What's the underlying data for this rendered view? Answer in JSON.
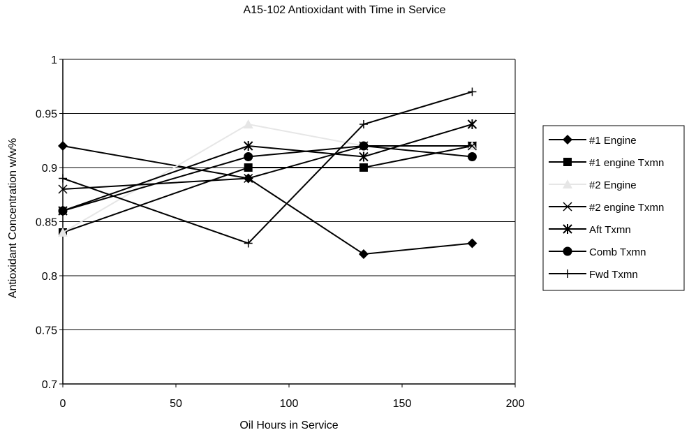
{
  "chart_data": {
    "type": "line",
    "title": "A15-102 Antioxidant with Time in Service",
    "xlabel": "Oil Hours in Service",
    "ylabel": "Antioxidant Concentration w/w%",
    "xlim": [
      0,
      200
    ],
    "ylim": [
      0.7,
      1
    ],
    "xticks": [
      0,
      50,
      100,
      150,
      200
    ],
    "yticks": [
      0.7,
      0.75,
      0.8,
      0.85,
      0.9,
      0.95,
      1
    ],
    "xtick_labels": [
      "0",
      "50",
      "100",
      "150",
      "200"
    ],
    "ytick_labels": [
      "0.7",
      "0.75",
      "0.8",
      "0.85",
      "0.9",
      "0.95",
      "1"
    ],
    "grid": "horizontal",
    "legend_position": "right",
    "series": [
      {
        "name": "#1 Engine",
        "marker": "diamond",
        "color": "#000000",
        "x": [
          0,
          82,
          133,
          181
        ],
        "y": [
          0.92,
          0.89,
          0.82,
          0.83
        ]
      },
      {
        "name": "#1 engine Txmn",
        "marker": "square",
        "color": "#000000",
        "x": [
          0,
          82,
          133,
          181
        ],
        "y": [
          0.84,
          0.9,
          0.9,
          0.92
        ]
      },
      {
        "name": "#2 Engine",
        "marker": "triangle",
        "color": "#e6e6e6",
        "x": [
          0,
          82,
          133,
          181
        ],
        "y": [
          0.84,
          0.94,
          0.92,
          0.92
        ]
      },
      {
        "name": "#2 engine Txmn",
        "marker": "x",
        "color": "#000000",
        "x": [
          0,
          82,
          133,
          181
        ],
        "y": [
          0.88,
          0.89,
          0.92,
          0.92
        ]
      },
      {
        "name": "Aft Txmn",
        "marker": "asterisk",
        "color": "#000000",
        "x": [
          0,
          82,
          133,
          181
        ],
        "y": [
          0.86,
          0.92,
          0.91,
          0.94
        ]
      },
      {
        "name": "Comb Txmn",
        "marker": "circle",
        "color": "#000000",
        "x": [
          0,
          82,
          133,
          181
        ],
        "y": [
          0.86,
          0.91,
          0.92,
          0.91
        ]
      },
      {
        "name": "Fwd Txmn",
        "marker": "plus",
        "color": "#000000",
        "x": [
          0,
          82,
          133,
          181
        ],
        "y": [
          0.89,
          0.83,
          0.94,
          0.97
        ]
      }
    ]
  }
}
